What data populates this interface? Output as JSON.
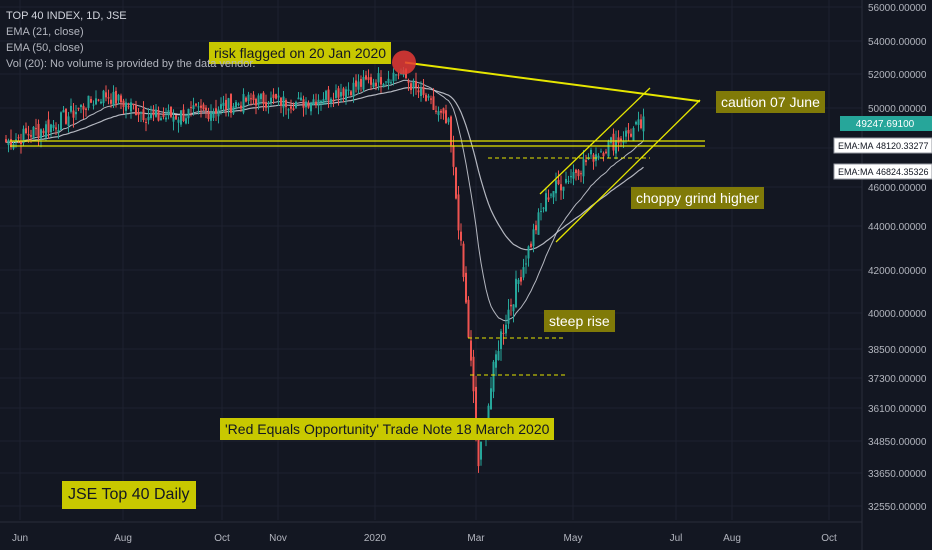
{
  "legend": {
    "title": "TOP 40 INDEX, 1D, JSE",
    "ema21": "EMA (21, close)",
    "ema50": "EMA (50, close)",
    "vol": "Vol (20): No volume is provided by the data vendor."
  },
  "annotations": {
    "risk": "risk flagged on 20 Jan 2020",
    "caution": "caution 07 June",
    "choppy": "choppy grind higher",
    "steep": "steep rise",
    "red": "'Red Equals Opportunity' Trade Note 18 March 2020",
    "title_box": "JSE Top 40 Daily"
  },
  "colors": {
    "background": "#131722",
    "up": "#26a69a",
    "down": "#ef5350",
    "trendline": "#e6e600",
    "ema": "#d1d4dc",
    "text": "#b2b5be",
    "price_badge_bg": "#26a69a"
  },
  "chart_data": {
    "type": "candlestick",
    "ylim": [
      32000,
      56000
    ],
    "y_ticks": [
      "56000.00000",
      "54000.00000",
      "52000.00000",
      "50000.00000",
      "48000.00000",
      "46000.00000",
      "44000.00000",
      "42000.00000",
      "40000.00000",
      "38500.00000",
      "37300.00000",
      "36100.00000",
      "34850.00000",
      "33650.00000",
      "32550.00000"
    ],
    "x_ticks": [
      "Jun",
      "Aug",
      "Oct",
      "Nov",
      "2020",
      "Mar",
      "May",
      "Jul",
      "Aug",
      "Oct"
    ],
    "last_price": "49247.69100",
    "ema_labels": [
      {
        "name": "EMA:MA",
        "value": "48120.33277"
      },
      {
        "name": "EMA:MA",
        "value": "46824.35326"
      }
    ],
    "close_series": [
      {
        "month": "2019-06",
        "open": 48300,
        "close": 49200
      },
      {
        "month": "2019-07",
        "open": 49200,
        "close": 50800
      },
      {
        "month": "2019-08",
        "open": 50800,
        "close": 49500
      },
      {
        "month": "2019-09",
        "open": 49500,
        "close": 49800
      },
      {
        "month": "2019-10",
        "open": 49800,
        "close": 50500
      },
      {
        "month": "2019-11",
        "open": 50500,
        "close": 50300
      },
      {
        "month": "2019-12",
        "open": 50300,
        "close": 51200
      },
      {
        "month": "2020-01",
        "open": 51200,
        "close": 52100
      },
      {
        "month": "2020-02",
        "open": 52100,
        "close": 49000
      },
      {
        "month": "2020-03",
        "open": 49000,
        "close": 38700
      },
      {
        "month": "2020-04",
        "open": 38700,
        "close": 45600
      },
      {
        "month": "2020-05",
        "open": 45600,
        "close": 47800
      },
      {
        "month": "2020-06",
        "open": 47800,
        "close": 49248
      }
    ],
    "key_points": [
      {
        "date": "2020-01-20",
        "value": 52700
      },
      {
        "date": "2020-03-18",
        "value": 33700
      },
      {
        "date": "2020-06-07",
        "value": 50400
      }
    ]
  }
}
